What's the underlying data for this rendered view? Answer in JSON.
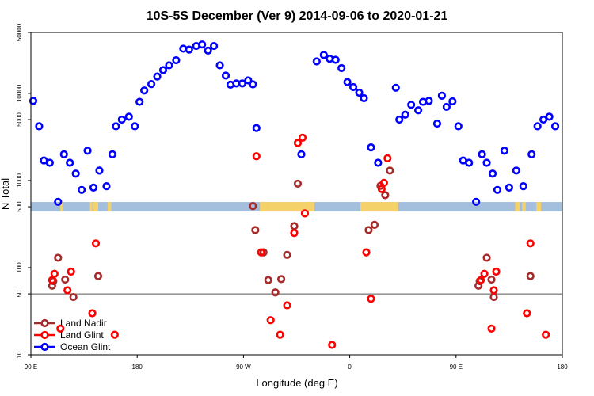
{
  "chart_data": {
    "type": "scatter",
    "title": "10S-5S December (Ver 9)   2014-09-06 to 2020-01-21",
    "xlabel": "Longitude (deg E)",
    "ylabel": "N Total",
    "xlim": [
      90,
      540
    ],
    "ylim": [
      10,
      50000
    ],
    "y_scale": "log",
    "x_ticks": [
      {
        "value": 90,
        "label": "90 E"
      },
      {
        "value": 180,
        "label": "180"
      },
      {
        "value": 270,
        "label": "90 W"
      },
      {
        "value": 360,
        "label": "0"
      },
      {
        "value": 450,
        "label": "90 E"
      },
      {
        "value": 540,
        "label": "180"
      }
    ],
    "y_ticks": [
      {
        "value": 10,
        "label": "10"
      },
      {
        "value": 50,
        "label": "50"
      },
      {
        "value": 100,
        "label": "100"
      },
      {
        "value": 500,
        "label": "500"
      },
      {
        "value": 1000,
        "label": "1000"
      },
      {
        "value": 5000,
        "label": "5000"
      },
      {
        "value": 10000,
        "label": "10000"
      },
      {
        "value": 50000,
        "label": "50000"
      }
    ],
    "reference_lines": [
      50
    ],
    "land_band": {
      "y_center": 500,
      "band_color": "#a4bedd",
      "land_color": "#f5d16a"
    },
    "legend_position": "bottom-left",
    "series": [
      {
        "name": "Land Nadir",
        "color": "#a52a2a",
        "points": [
          [
            108,
            62
          ],
          [
            109,
            70
          ],
          [
            113,
            130
          ],
          [
            119,
            73
          ],
          [
            126,
            46
          ],
          [
            147,
            80
          ],
          [
            278,
            510
          ],
          [
            280,
            270
          ],
          [
            287,
            150
          ],
          [
            291,
            72
          ],
          [
            297,
            52
          ],
          [
            302,
            74
          ],
          [
            307,
            140
          ],
          [
            313,
            300
          ],
          [
            316,
            920
          ],
          [
            376,
            270
          ],
          [
            381,
            310
          ],
          [
            386,
            870
          ],
          [
            390,
            680
          ],
          [
            394,
            1300
          ],
          [
            469,
            62
          ],
          [
            470,
            70
          ],
          [
            476,
            130
          ],
          [
            480,
            73
          ],
          [
            482,
            46
          ],
          [
            513,
            80
          ]
        ]
      },
      {
        "name": "Land Glint",
        "color": "#ff0000",
        "points": [
          [
            108,
            72
          ],
          [
            110,
            85
          ],
          [
            115,
            20
          ],
          [
            121,
            55
          ],
          [
            124,
            90
          ],
          [
            142,
            30
          ],
          [
            145,
            190
          ],
          [
            161,
            17
          ],
          [
            281,
            1900
          ],
          [
            285,
            150
          ],
          [
            293,
            25
          ],
          [
            301,
            17
          ],
          [
            307,
            37
          ],
          [
            313,
            250
          ],
          [
            316,
            2700
          ],
          [
            320,
            3100
          ],
          [
            322,
            420
          ],
          [
            345,
            13
          ],
          [
            374,
            150
          ],
          [
            378,
            44
          ],
          [
            387,
            800
          ],
          [
            389,
            940
          ],
          [
            392,
            1800
          ],
          [
            471,
            72
          ],
          [
            474,
            85
          ],
          [
            480,
            20
          ],
          [
            482,
            55
          ],
          [
            484,
            90
          ],
          [
            510,
            30
          ],
          [
            513,
            190
          ],
          [
            526,
            17
          ]
        ]
      },
      {
        "name": "Ocean Glint",
        "color": "#0000ff",
        "points": [
          [
            92,
            8200
          ],
          [
            97,
            4200
          ],
          [
            101,
            1700
          ],
          [
            106,
            1600
          ],
          [
            113,
            570
          ],
          [
            118,
            2000
          ],
          [
            123,
            1600
          ],
          [
            128,
            1200
          ],
          [
            133,
            780
          ],
          [
            138,
            2200
          ],
          [
            143,
            830
          ],
          [
            148,
            1300
          ],
          [
            154,
            860
          ],
          [
            159,
            2000
          ],
          [
            162,
            4200
          ],
          [
            167,
            5000
          ],
          [
            173,
            5400
          ],
          [
            178,
            4200
          ],
          [
            182,
            8000
          ],
          [
            186,
            10800
          ],
          [
            192,
            12800
          ],
          [
            197,
            15600
          ],
          [
            202,
            18500
          ],
          [
            207,
            21000
          ],
          [
            213,
            24000
          ],
          [
            219,
            32600
          ],
          [
            224,
            31800
          ],
          [
            230,
            35000
          ],
          [
            235,
            36400
          ],
          [
            240,
            31000
          ],
          [
            245,
            35000
          ],
          [
            250,
            21000
          ],
          [
            255,
            16000
          ],
          [
            259,
            12600
          ],
          [
            264,
            13000
          ],
          [
            269,
            13000
          ],
          [
            274,
            14100
          ],
          [
            278,
            12700
          ],
          [
            281,
            4000
          ],
          [
            319,
            2000
          ],
          [
            332,
            23300
          ],
          [
            338,
            27600
          ],
          [
            343,
            25000
          ],
          [
            348,
            24300
          ],
          [
            353,
            19500
          ],
          [
            358,
            13500
          ],
          [
            363,
            11800
          ],
          [
            368,
            10200
          ],
          [
            372,
            8800
          ],
          [
            378,
            2400
          ],
          [
            384,
            1600
          ],
          [
            399,
            11600
          ],
          [
            402,
            5000
          ],
          [
            407,
            5700
          ],
          [
            412,
            7400
          ],
          [
            418,
            6400
          ],
          [
            422,
            8000
          ],
          [
            427,
            8200
          ],
          [
            434,
            4500
          ],
          [
            438,
            9400
          ],
          [
            442,
            7000
          ],
          [
            447,
            8100
          ],
          [
            452,
            4200
          ],
          [
            456,
            1700
          ],
          [
            461,
            1600
          ],
          [
            467,
            570
          ],
          [
            472,
            2000
          ],
          [
            476,
            1600
          ],
          [
            481,
            1200
          ],
          [
            485,
            780
          ],
          [
            491,
            2200
          ],
          [
            495,
            830
          ],
          [
            501,
            1300
          ],
          [
            507,
            860
          ],
          [
            514,
            2000
          ],
          [
            519,
            4200
          ],
          [
            524,
            5000
          ],
          [
            529,
            5400
          ],
          [
            534,
            4200
          ]
        ]
      }
    ]
  }
}
